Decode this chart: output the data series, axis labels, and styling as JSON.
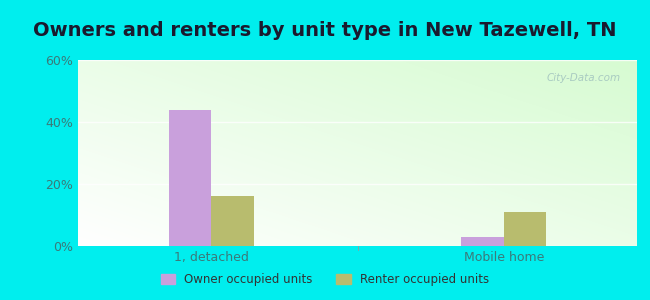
{
  "title": "Owners and renters by unit type in New Tazewell, TN",
  "categories": [
    "1, detached",
    "Mobile home"
  ],
  "owner_values": [
    44.0,
    3.0
  ],
  "renter_values": [
    16.0,
    11.0
  ],
  "owner_color": "#c9a0dc",
  "renter_color": "#b8bc6e",
  "ylim": [
    0,
    60
  ],
  "yticks": [
    0,
    20,
    40,
    60
  ],
  "yticklabels": [
    "0%",
    "20%",
    "40%",
    "60%"
  ],
  "legend_owner": "Owner occupied units",
  "legend_renter": "Renter occupied units",
  "bg_color": "#00EEEE",
  "bar_width": 0.32,
  "group_positions": [
    1.0,
    3.2
  ],
  "watermark": "City-Data.com",
  "title_fontsize": 14,
  "axis_fontsize": 9,
  "tick_color": "#3a7a7a",
  "title_color": "#1a1a2e"
}
